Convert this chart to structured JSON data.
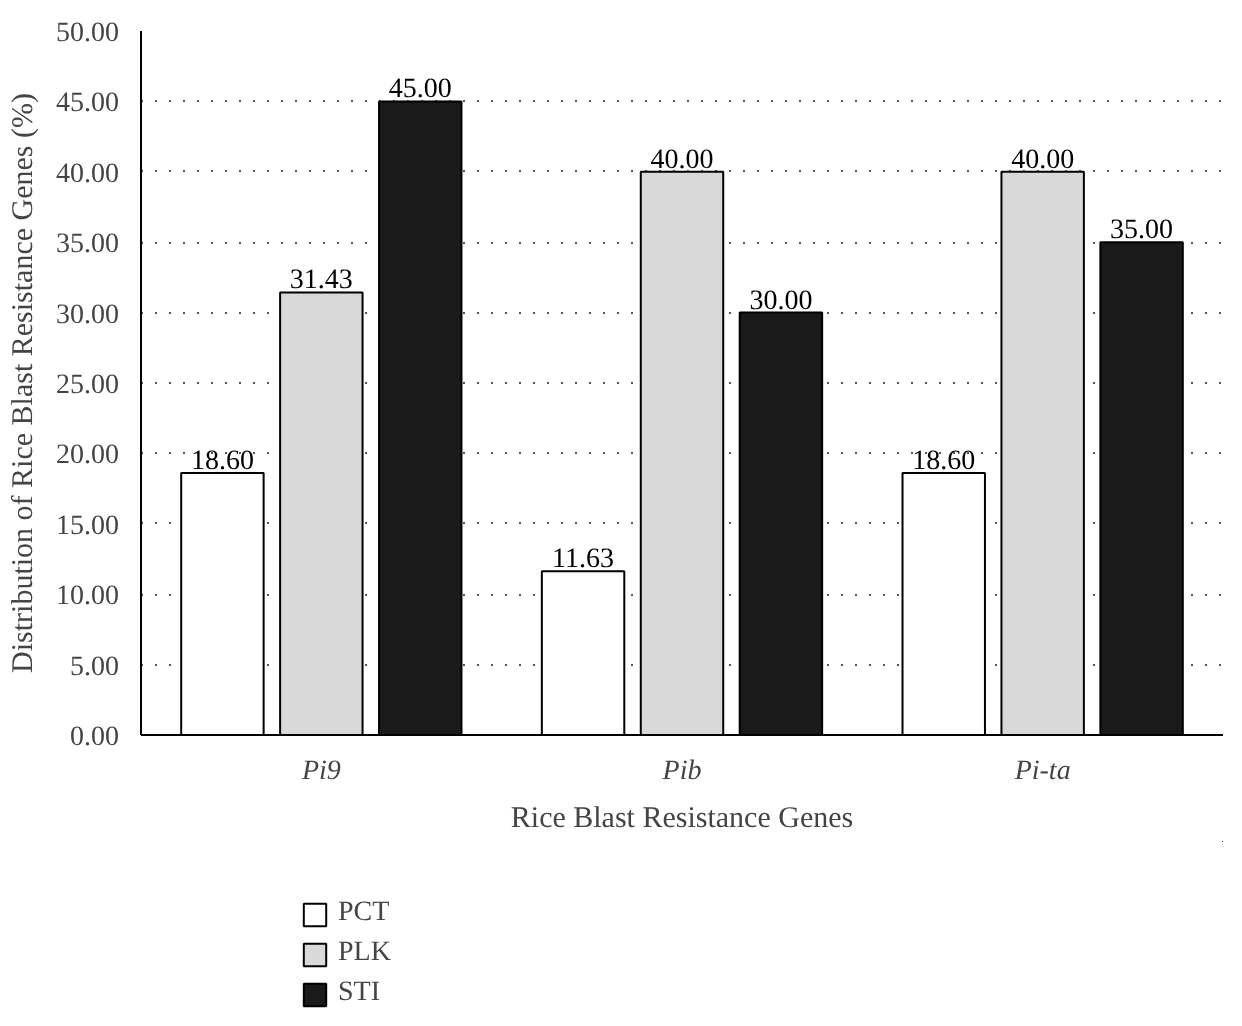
{
  "chart_data": {
    "type": "bar",
    "xlabel": "Rice Blast Resistance Genes",
    "ylabel": "Distribution of Rice Blast Resistance Genes (%)",
    "categories": [
      "Pi9",
      "Pib",
      "Pi-ta"
    ],
    "series": [
      {
        "name": "PCT",
        "color": "#ffffff",
        "values": [
          18.6,
          11.63,
          18.6
        ],
        "value_labels": [
          "18.60",
          "11.63",
          "18.60"
        ]
      },
      {
        "name": "PLK",
        "color": "#d9d9d9",
        "values": [
          31.43,
          40.0,
          40.0
        ],
        "value_labels": [
          "31.43",
          "40.00",
          "40.00"
        ]
      },
      {
        "name": "STI",
        "color": "#1a1a1a",
        "values": [
          45.0,
          30.0,
          35.0
        ],
        "value_labels": [
          "45.00",
          "30.00",
          "35.00"
        ]
      }
    ],
    "ylim": [
      0,
      50
    ],
    "yticks": [
      {
        "value": 0,
        "label": "0.00"
      },
      {
        "value": 5,
        "label": "5.00"
      },
      {
        "value": 10,
        "label": "10.00"
      },
      {
        "value": 15,
        "label": "15.00"
      },
      {
        "value": 20,
        "label": "20.00"
      },
      {
        "value": 25,
        "label": "25.00"
      },
      {
        "value": 30,
        "label": "30.00"
      },
      {
        "value": 35,
        "label": "35.00"
      },
      {
        "value": 40,
        "label": "40.00"
      },
      {
        "value": 45,
        "label": "45.00"
      },
      {
        "value": 50,
        "label": "50.00"
      }
    ],
    "grid": "y",
    "legend": "bottom"
  }
}
